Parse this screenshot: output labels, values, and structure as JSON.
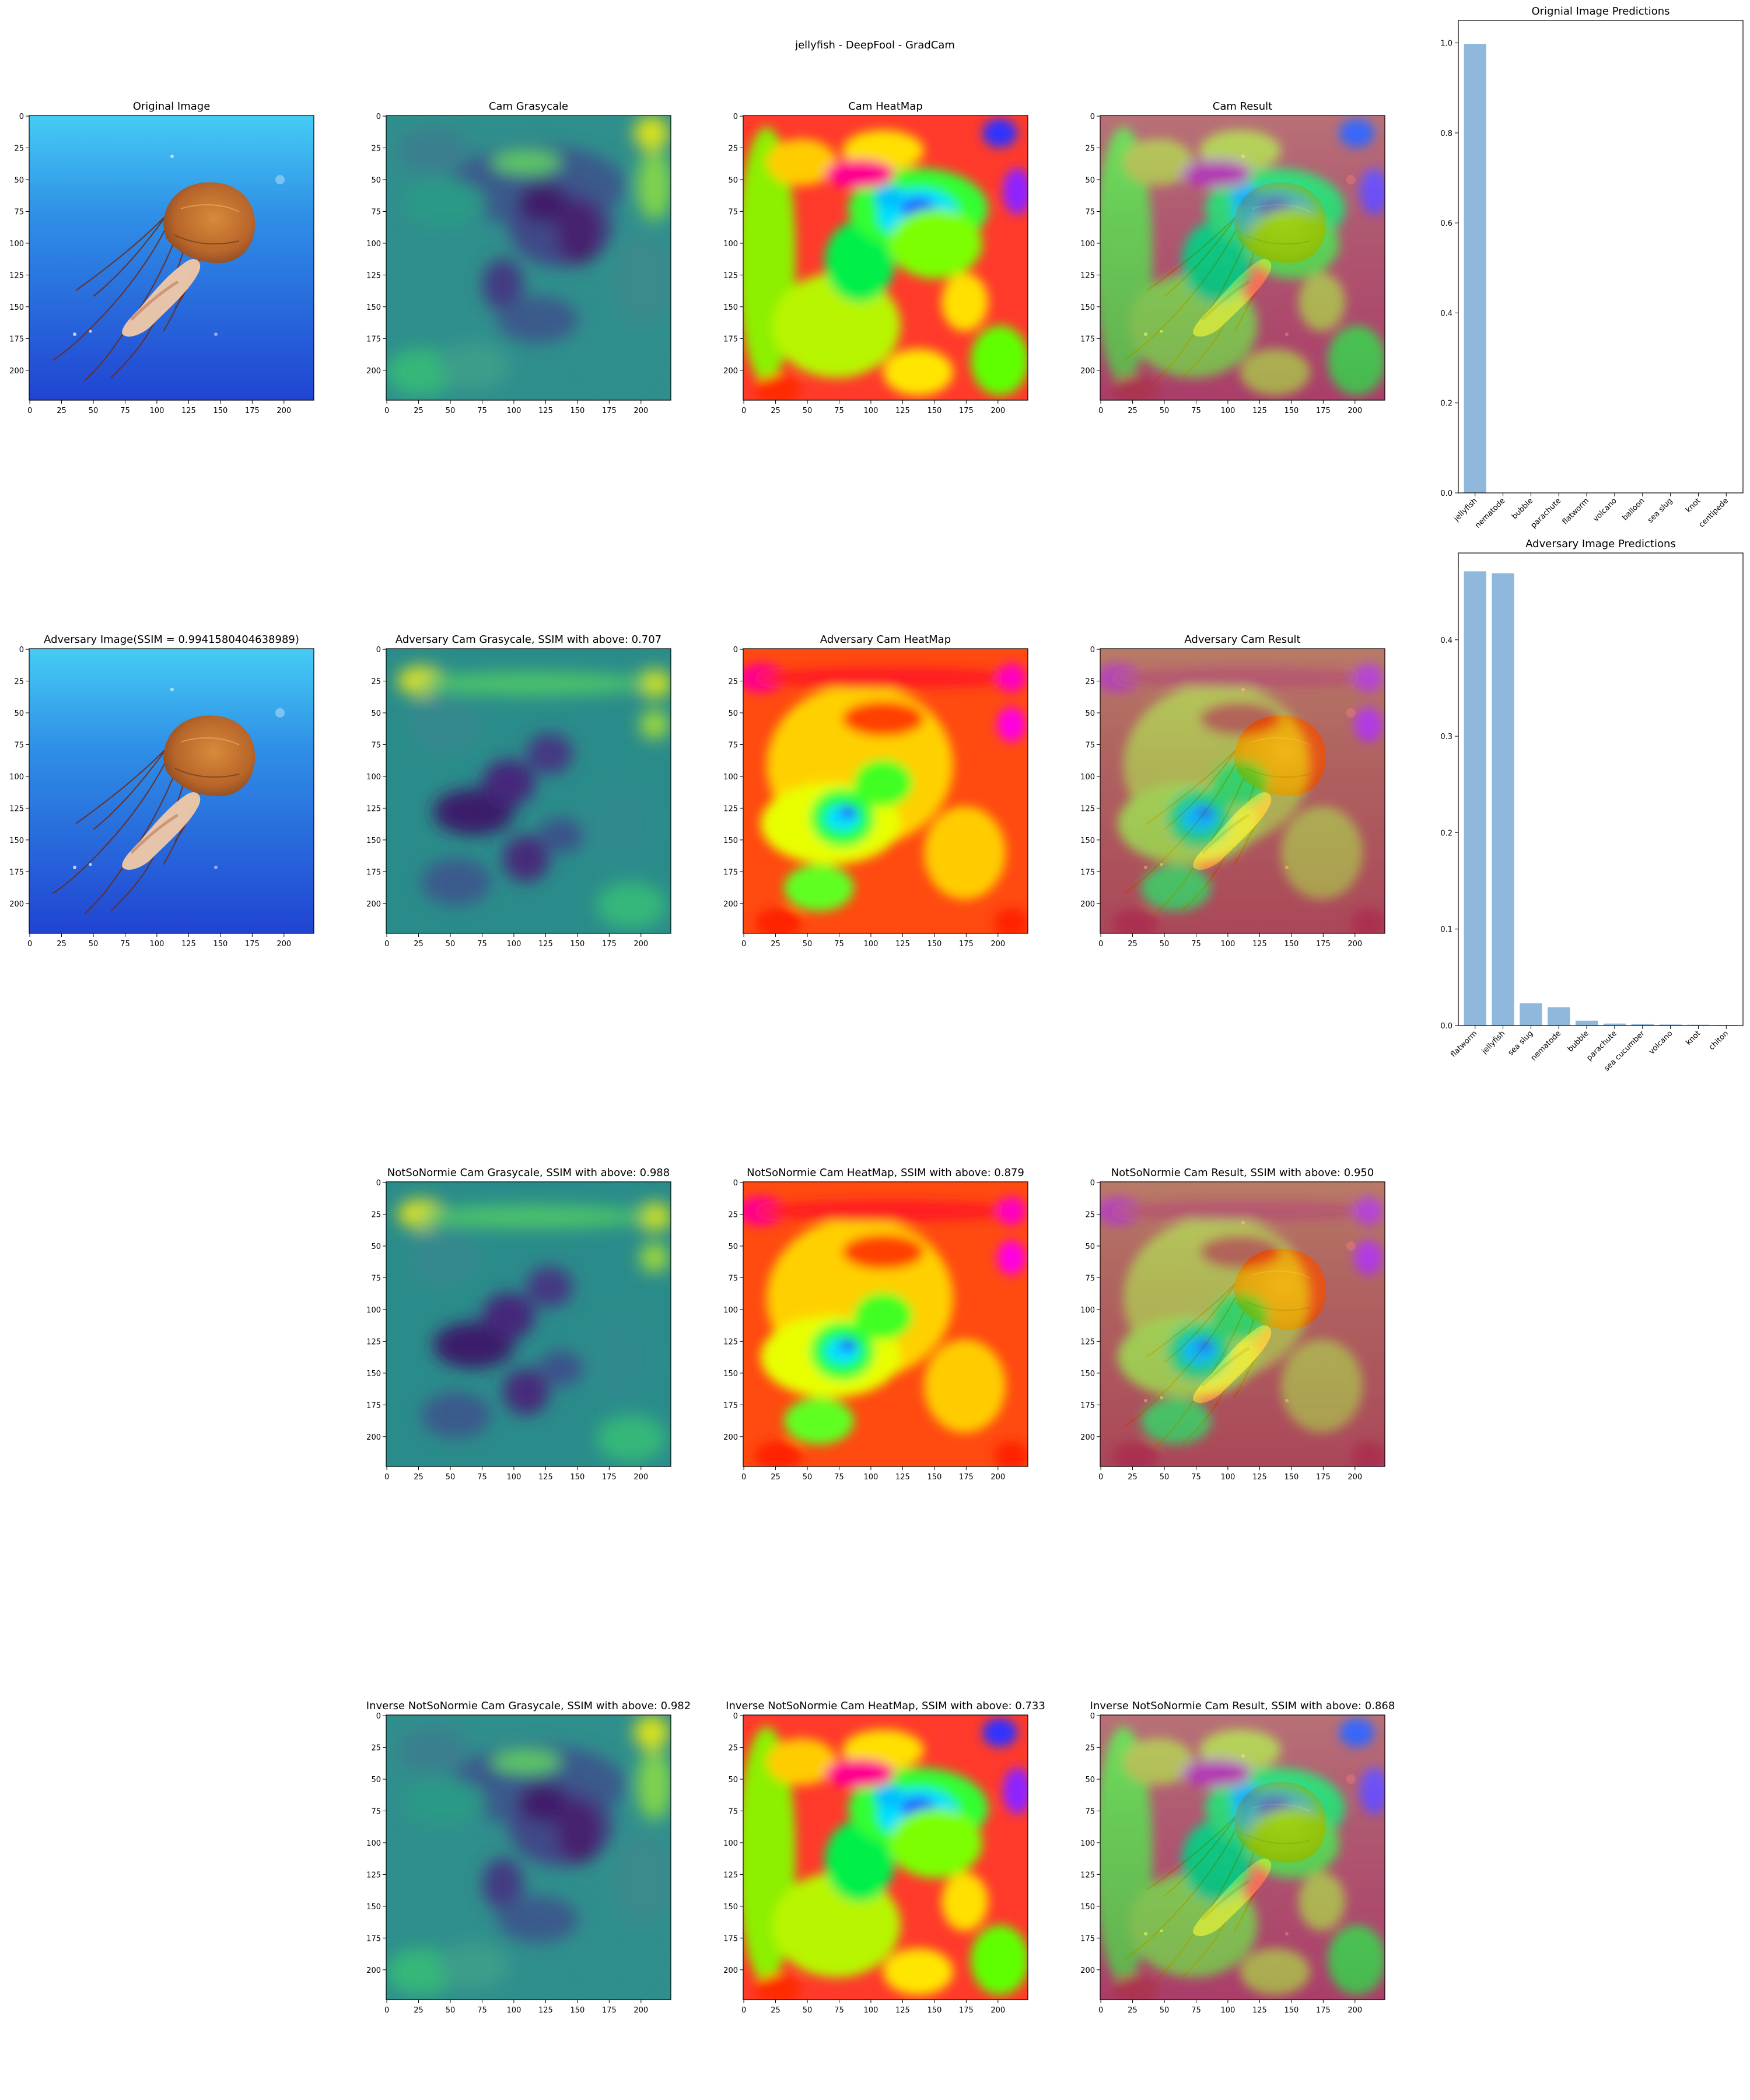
{
  "suptitle": "jellyfish - DeepFool - GradCam",
  "image_panels": [
    {
      "id": "r0c0",
      "title": "Original Image",
      "kind": "photo",
      "tint": "none"
    },
    {
      "id": "r0c1",
      "title": "Cam Grasycale",
      "kind": "viridis",
      "tint": "none"
    },
    {
      "id": "r0c2",
      "title": "Cam HeatMap",
      "kind": "hsv",
      "tint": "none"
    },
    {
      "id": "r0c3",
      "title": "Cam Result",
      "kind": "photo",
      "tint": "hsv"
    },
    {
      "id": "r1c0",
      "title": "Adversary Image(SSIM = 0.9941580404638989)",
      "kind": "photo",
      "tint": "none"
    },
    {
      "id": "r1c1",
      "title": "Adversary Cam Grasycale, SSIM with above: 0.707",
      "kind": "viridis",
      "tint": "none"
    },
    {
      "id": "r1c2",
      "title": "Adversary Cam HeatMap",
      "kind": "hsv",
      "tint": "none"
    },
    {
      "id": "r1c3",
      "title": "Adversary Cam Result",
      "kind": "photo",
      "tint": "hsv"
    },
    {
      "id": "r2c1",
      "title": "NotSoNormie Cam Grasycale, SSIM with above: 0.988",
      "kind": "viridis",
      "tint": "none"
    },
    {
      "id": "r2c2",
      "title": "NotSoNormie Cam HeatMap, SSIM with above: 0.879",
      "kind": "hsv",
      "tint": "none"
    },
    {
      "id": "r2c3",
      "title": "NotSoNormie Cam Result, SSIM with above: 0.950",
      "kind": "photo",
      "tint": "hsv"
    },
    {
      "id": "r3c1",
      "title": "Inverse NotSoNormie Cam Grasycale, SSIM with above: 0.982",
      "kind": "viridis",
      "tint": "none"
    },
    {
      "id": "r3c2",
      "title": "Inverse NotSoNormie Cam HeatMap, SSIM with above: 0.733",
      "kind": "hsv",
      "tint": "none"
    },
    {
      "id": "r3c3",
      "title": "Inverse NotSoNormie Cam Result, SSIM with above: 0.868",
      "kind": "photo",
      "tint": "hsv"
    }
  ],
  "image_axes": {
    "xticks": [
      "0",
      "25",
      "50",
      "75",
      "100",
      "125",
      "150",
      "175",
      "200"
    ],
    "yticks": [
      "0",
      "25",
      "50",
      "75",
      "100",
      "125",
      "150",
      "175",
      "200"
    ],
    "range": [
      0,
      224
    ]
  },
  "colors": {
    "bar": "#8fb8dc",
    "ocean_top": "#41c6f2",
    "ocean_bottom": "#2348d6",
    "jelly": "#c0702a"
  },
  "chart_data": [
    {
      "type": "bar",
      "title": "Orignial Image Predictions",
      "categories": [
        "jellyfish",
        "nematode",
        "bubble",
        "parachute",
        "flatworm",
        "volcano",
        "balloon",
        "sea slug",
        "knot",
        "centipede"
      ],
      "values": [
        0.998,
        0.0003,
        0.0002,
        0.0002,
        0.0001,
        0.0001,
        0.0001,
        0.0001,
        0.0001,
        0.0001
      ],
      "ylim": [
        0,
        1.05
      ],
      "yticks": [
        "0.0",
        "0.2",
        "0.4",
        "0.6",
        "0.8",
        "1.0"
      ],
      "ytick_values": [
        0,
        0.2,
        0.4,
        0.6,
        0.8,
        1.0
      ]
    },
    {
      "type": "bar",
      "title": "Adversary Image Predictions",
      "categories": [
        "flatworm",
        "jellyfish",
        "sea slug",
        "nematode",
        "bubble",
        "parachute",
        "sea cucumber",
        "volcano",
        "knot",
        "chiton"
      ],
      "values": [
        0.471,
        0.469,
        0.023,
        0.019,
        0.005,
        0.002,
        0.0015,
        0.001,
        0.0008,
        0.0006
      ],
      "ylim": [
        0,
        0.49
      ],
      "yticks": [
        "0.0",
        "0.1",
        "0.2",
        "0.3",
        "0.4"
      ],
      "ytick_values": [
        0,
        0.1,
        0.2,
        0.3,
        0.4
      ]
    }
  ]
}
